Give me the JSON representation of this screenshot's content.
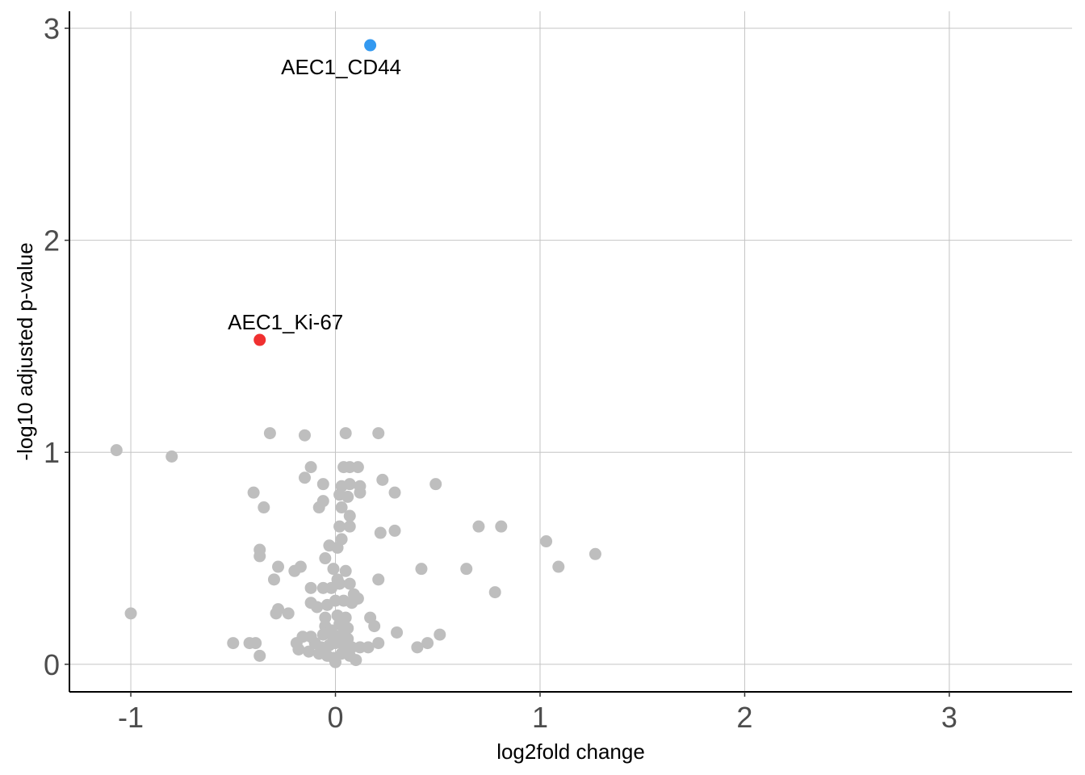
{
  "chart_data": {
    "type": "scatter",
    "title": "",
    "xlabel": "log2fold change",
    "ylabel": "-log10 adjusted p-value",
    "xlim": [
      -1.3,
      3.6
    ],
    "ylim": [
      -0.13,
      3.08
    ],
    "x_ticks": [
      -1,
      0,
      1,
      2,
      3
    ],
    "y_ticks": [
      0,
      1,
      2,
      3
    ],
    "x_tick_labels": [
      "-1",
      "0",
      "1",
      "2",
      "3"
    ],
    "y_tick_labels": [
      "0",
      "1",
      "2",
      "3"
    ],
    "grid": true,
    "legend": "none",
    "colors": {
      "default": "#bebebe",
      "up": "#f03030",
      "down": "#3399f0",
      "grid": "#c4c4c4",
      "axis": "#000000"
    },
    "highlighted": [
      {
        "label": "AEC1_CD44",
        "x": 0.17,
        "y": 2.92,
        "color": "#3399f0",
        "label_position": "below"
      },
      {
        "label": "AEC1_Ki-67",
        "x": -0.37,
        "y": 1.53,
        "color": "#f03030",
        "label_position": "above"
      }
    ],
    "points": [
      [
        -1.07,
        1.01
      ],
      [
        -0.8,
        0.98
      ],
      [
        -1.0,
        0.24
      ],
      [
        -0.32,
        1.09
      ],
      [
        -0.15,
        1.08
      ],
      [
        0.05,
        1.09
      ],
      [
        0.21,
        1.09
      ],
      [
        -0.12,
        0.93
      ],
      [
        0.04,
        0.93
      ],
      [
        0.07,
        0.93
      ],
      [
        0.11,
        0.93
      ],
      [
        -0.15,
        0.88
      ],
      [
        0.03,
        0.84
      ],
      [
        0.07,
        0.85
      ],
      [
        0.12,
        0.84
      ],
      [
        0.23,
        0.87
      ],
      [
        -0.06,
        0.85
      ],
      [
        -0.4,
        0.81
      ],
      [
        -0.06,
        0.77
      ],
      [
        0.02,
        0.8
      ],
      [
        0.06,
        0.79
      ],
      [
        0.12,
        0.81
      ],
      [
        0.29,
        0.81
      ],
      [
        0.49,
        0.85
      ],
      [
        -0.35,
        0.74
      ],
      [
        -0.08,
        0.74
      ],
      [
        0.03,
        0.74
      ],
      [
        0.07,
        0.7
      ],
      [
        0.02,
        0.65
      ],
      [
        0.07,
        0.65
      ],
      [
        0.22,
        0.62
      ],
      [
        0.29,
        0.63
      ],
      [
        0.7,
        0.65
      ],
      [
        0.81,
        0.65
      ],
      [
        -0.37,
        0.54
      ],
      [
        -0.37,
        0.51
      ],
      [
        -0.03,
        0.56
      ],
      [
        0.01,
        0.55
      ],
      [
        0.03,
        0.59
      ],
      [
        -0.05,
        0.5
      ],
      [
        1.03,
        0.58
      ],
      [
        1.09,
        0.46
      ],
      [
        1.27,
        0.52
      ],
      [
        -0.28,
        0.46
      ],
      [
        -0.17,
        0.46
      ],
      [
        -0.2,
        0.44
      ],
      [
        -0.01,
        0.45
      ],
      [
        0.05,
        0.44
      ],
      [
        0.01,
        0.4
      ],
      [
        0.42,
        0.45
      ],
      [
        0.64,
        0.45
      ],
      [
        -0.3,
        0.4
      ],
      [
        -0.12,
        0.36
      ],
      [
        -0.06,
        0.36
      ],
      [
        -0.02,
        0.36
      ],
      [
        0.02,
        0.38
      ],
      [
        0.07,
        0.38
      ],
      [
        0.09,
        0.33
      ],
      [
        0.21,
        0.4
      ],
      [
        0.78,
        0.34
      ],
      [
        -0.12,
        0.29
      ],
      [
        -0.09,
        0.27
      ],
      [
        -0.04,
        0.28
      ],
      [
        0.0,
        0.3
      ],
      [
        0.04,
        0.3
      ],
      [
        0.08,
        0.29
      ],
      [
        0.11,
        0.31
      ],
      [
        -0.28,
        0.26
      ],
      [
        -0.29,
        0.24
      ],
      [
        -0.23,
        0.24
      ],
      [
        -0.05,
        0.22
      ],
      [
        0.01,
        0.23
      ],
      [
        0.05,
        0.22
      ],
      [
        0.17,
        0.22
      ],
      [
        0.19,
        0.18
      ],
      [
        -0.05,
        0.18
      ],
      [
        -0.02,
        0.16
      ],
      [
        0.02,
        0.19
      ],
      [
        0.06,
        0.17
      ],
      [
        -0.12,
        0.13
      ],
      [
        -0.06,
        0.14
      ],
      [
        -0.01,
        0.12
      ],
      [
        0.03,
        0.14
      ],
      [
        0.06,
        0.12
      ],
      [
        0.3,
        0.15
      ],
      [
        0.51,
        0.14
      ],
      [
        -0.5,
        0.1
      ],
      [
        -0.42,
        0.1
      ],
      [
        -0.39,
        0.1
      ],
      [
        -0.19,
        0.1
      ],
      [
        -0.16,
        0.13
      ],
      [
        -0.1,
        0.1
      ],
      [
        -0.07,
        0.08
      ],
      [
        -0.03,
        0.09
      ],
      [
        0.0,
        0.1
      ],
      [
        0.04,
        0.09
      ],
      [
        0.08,
        0.08
      ],
      [
        0.12,
        0.08
      ],
      [
        0.16,
        0.08
      ],
      [
        0.21,
        0.1
      ],
      [
        0.45,
        0.1
      ],
      [
        0.4,
        0.08
      ],
      [
        -0.18,
        0.07
      ],
      [
        -0.13,
        0.06
      ],
      [
        -0.08,
        0.05
      ],
      [
        -0.04,
        0.04
      ],
      [
        -0.01,
        0.03
      ],
      [
        0.03,
        0.05
      ],
      [
        0.07,
        0.04
      ],
      [
        0.1,
        0.02
      ],
      [
        -0.37,
        0.04
      ],
      [
        0.0,
        0.01
      ]
    ]
  }
}
